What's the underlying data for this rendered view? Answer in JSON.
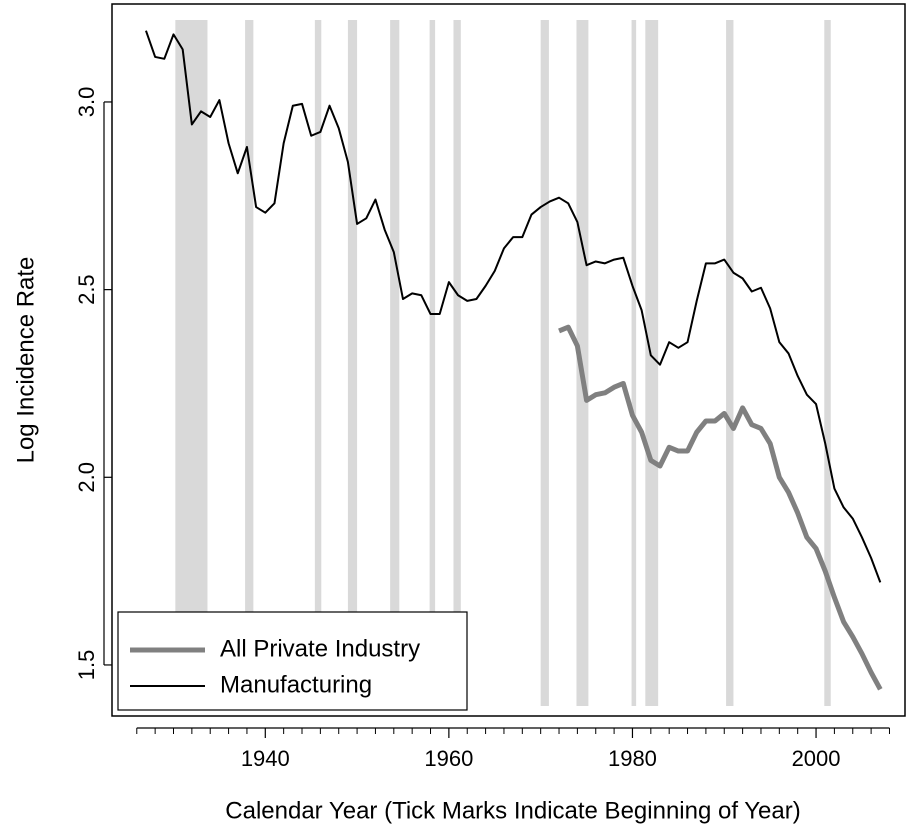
{
  "chart_data": {
    "type": "line",
    "x_label": "Calendar Year (Tick Marks Indicate Beginning of Year)",
    "y_label": "Log Incidence Rate",
    "xlim": [
      1923.3,
      2009.8
    ],
    "ylim": [
      1.364,
      3.261
    ],
    "xticks": [
      1940,
      1960,
      1980,
      2000
    ],
    "x_minor_ticks": [
      1926,
      1928,
      1930,
      1932,
      1934,
      1936,
      1938,
      1942,
      1944,
      1946,
      1948,
      1950,
      1952,
      1954,
      1956,
      1958,
      1962,
      1964,
      1966,
      1968,
      1970,
      1972,
      1974,
      1976,
      1978,
      1982,
      1984,
      1986,
      1988,
      1990,
      1992,
      1994,
      1996,
      1998,
      2002,
      2004,
      2006,
      2008
    ],
    "yticks": [
      {
        "value": 3,
        "label": "3.0"
      },
      2.5,
      {
        "value": 2,
        "label": "2.0"
      },
      1.5
    ],
    "recessions": [
      [
        1930.2,
        1933.7
      ],
      [
        1937.8,
        1938.7
      ],
      [
        1945.4,
        1946.1
      ],
      [
        1949.0,
        1950.0
      ],
      [
        1953.6,
        1954.6
      ],
      [
        1957.9,
        1958.5
      ],
      [
        1960.5,
        1961.3
      ],
      [
        1970.0,
        1970.9
      ],
      [
        1973.9,
        1975.2
      ],
      [
        1979.9,
        1980.4
      ],
      [
        1981.4,
        1982.8
      ],
      [
        1990.2,
        1991.0
      ],
      [
        2000.9,
        2001.6
      ]
    ],
    "recession_color": "#d9d9d9",
    "legend": "bottom-left",
    "x": [
      1927,
      1928,
      1929,
      1930,
      1931,
      1932,
      1933,
      1934,
      1935,
      1936,
      1937,
      1938,
      1939,
      1940,
      1941,
      1942,
      1943,
      1944,
      1945,
      1946,
      1947,
      1948,
      1949,
      1950,
      1951,
      1952,
      1953,
      1954,
      1955,
      1956,
      1957,
      1958,
      1959,
      1960,
      1961,
      1962,
      1963,
      1964,
      1965,
      1966,
      1967,
      1968,
      1969,
      1970,
      1971,
      1972,
      1973,
      1974,
      1975,
      1976,
      1977,
      1978,
      1979,
      1980,
      1981,
      1982,
      1983,
      1984,
      1985,
      1986,
      1987,
      1988,
      1989,
      1990,
      1991,
      1992,
      1993,
      1994,
      1995,
      1996,
      1997,
      1998,
      1999,
      2000,
      2001,
      2002,
      2003,
      2004,
      2005,
      2006,
      2007
    ],
    "series": [
      {
        "name": "All Private Industry",
        "color": "#808080",
        "width": 5,
        "values": [
          null,
          null,
          null,
          null,
          null,
          null,
          null,
          null,
          null,
          null,
          null,
          null,
          null,
          null,
          null,
          null,
          null,
          null,
          null,
          null,
          null,
          null,
          null,
          null,
          null,
          null,
          null,
          null,
          null,
          null,
          null,
          null,
          null,
          null,
          null,
          null,
          null,
          null,
          null,
          null,
          null,
          null,
          null,
          null,
          null,
          2.39,
          2.4,
          2.35,
          2.205,
          2.22,
          2.225,
          2.24,
          2.25,
          2.165,
          2.12,
          2.045,
          2.03,
          2.08,
          2.07,
          2.07,
          2.12,
          2.15,
          2.15,
          2.17,
          2.13,
          2.185,
          2.14,
          2.13,
          2.09,
          2.0,
          1.96,
          1.905,
          1.84,
          1.81,
          1.75,
          1.68,
          1.615,
          1.575,
          1.53,
          1.48,
          1.435
        ]
      },
      {
        "name": "Manufacturing",
        "color": "#000000",
        "width": 2,
        "values": [
          3.19,
          3.12,
          3.115,
          3.18,
          3.14,
          2.94,
          2.975,
          2.96,
          3.005,
          2.89,
          2.81,
          2.88,
          2.72,
          2.705,
          2.73,
          2.89,
          2.99,
          2.995,
          2.91,
          2.92,
          2.99,
          2.93,
          2.84,
          2.675,
          2.69,
          2.74,
          2.66,
          2.6,
          2.475,
          2.49,
          2.485,
          2.435,
          2.435,
          2.52,
          2.485,
          2.47,
          2.475,
          2.51,
          2.55,
          2.61,
          2.64,
          2.64,
          2.7,
          2.72,
          2.735,
          2.745,
          2.73,
          2.68,
          2.565,
          2.575,
          2.57,
          2.58,
          2.585,
          2.51,
          2.445,
          2.325,
          2.3,
          2.36,
          2.345,
          2.36,
          2.47,
          2.57,
          2.57,
          2.58,
          2.545,
          2.53,
          2.495,
          2.505,
          2.45,
          2.36,
          2.33,
          2.27,
          2.22,
          2.195,
          2.09,
          1.97,
          1.92,
          1.89,
          1.84,
          1.785,
          1.72
        ]
      }
    ]
  }
}
